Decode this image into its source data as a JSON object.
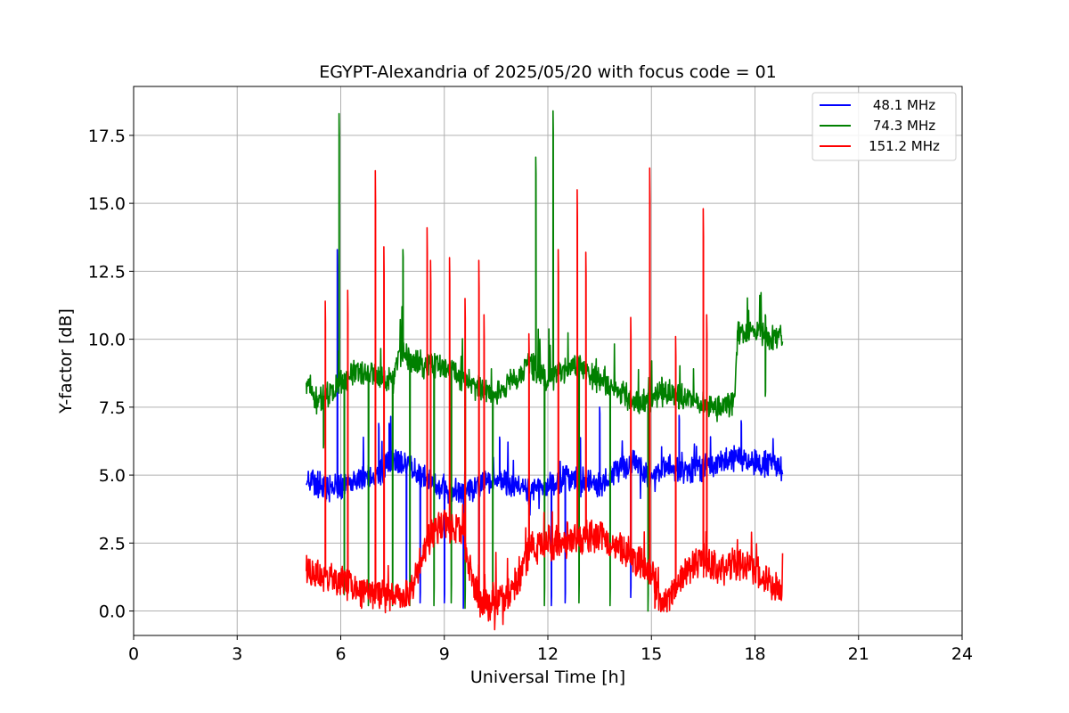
{
  "chart_data": {
    "type": "line",
    "title": "EGYPT-Alexandria of 2025/05/20 with focus code = 01",
    "xlabel": "Universal Time [h]",
    "ylabel": "Y-factor [dB]",
    "xlim": [
      0,
      24
    ],
    "ylim": [
      -0.9,
      19.3
    ],
    "xticks": [
      0,
      3,
      6,
      9,
      12,
      15,
      18,
      21,
      24
    ],
    "yticks": [
      0.0,
      2.5,
      5.0,
      7.5,
      10.0,
      12.5,
      15.0,
      17.5
    ],
    "xtick_labels": [
      "0",
      "3",
      "6",
      "9",
      "12",
      "15",
      "18",
      "21",
      "24"
    ],
    "ytick_labels": [
      "0.0",
      "2.5",
      "5.0",
      "7.5",
      "10.0",
      "12.5",
      "15.0",
      "17.5"
    ],
    "grid": true,
    "legend_position": "top-right",
    "series": [
      {
        "name": "48.1 MHz",
        "color": "#0000ff",
        "baseline": [
          [
            5.0,
            5.0
          ],
          [
            5.3,
            4.7
          ],
          [
            5.6,
            4.4
          ],
          [
            6.0,
            4.6
          ],
          [
            6.5,
            4.8
          ],
          [
            7.0,
            4.9
          ],
          [
            7.5,
            5.6
          ],
          [
            8.0,
            5.3
          ],
          [
            8.5,
            4.8
          ],
          [
            9.0,
            4.5
          ],
          [
            9.5,
            4.4
          ],
          [
            10.0,
            4.6
          ],
          [
            10.5,
            4.9
          ],
          [
            11.0,
            4.5
          ],
          [
            11.5,
            4.4
          ],
          [
            12.0,
            4.6
          ],
          [
            12.5,
            4.9
          ],
          [
            13.0,
            4.8
          ],
          [
            13.5,
            4.6
          ],
          [
            14.0,
            5.2
          ],
          [
            14.5,
            5.5
          ],
          [
            15.0,
            4.8
          ],
          [
            15.5,
            5.4
          ],
          [
            16.0,
            5.1
          ],
          [
            16.5,
            5.3
          ],
          [
            17.0,
            5.5
          ],
          [
            17.5,
            5.7
          ],
          [
            18.0,
            5.5
          ],
          [
            18.5,
            5.4
          ],
          [
            18.8,
            5.3
          ]
        ],
        "spikes": [
          [
            5.9,
            13.3
          ],
          [
            7.1,
            6.9
          ],
          [
            7.4,
            6.9
          ],
          [
            8.6,
            7.0
          ],
          [
            10.6,
            6.4
          ],
          [
            13.5,
            7.5
          ],
          [
            15.8,
            7.2
          ],
          [
            17.6,
            7.0
          ]
        ],
        "dips": [
          [
            7.9,
            0.2
          ],
          [
            8.3,
            0.3
          ],
          [
            9.0,
            0.3
          ],
          [
            9.55,
            0.1
          ],
          [
            10.0,
            0.3
          ],
          [
            12.1,
            0.2
          ],
          [
            12.5,
            0.3
          ],
          [
            14.4,
            0.5
          ]
        ]
      },
      {
        "name": "74.3 MHz",
        "color": "#008000",
        "baseline": [
          [
            5.0,
            8.4
          ],
          [
            5.3,
            7.7
          ],
          [
            5.6,
            8.0
          ],
          [
            6.0,
            8.4
          ],
          [
            6.5,
            8.8
          ],
          [
            7.0,
            8.7
          ],
          [
            7.5,
            8.5
          ],
          [
            7.8,
            9.7
          ],
          [
            8.0,
            9.3
          ],
          [
            8.5,
            9.0
          ],
          [
            9.0,
            9.1
          ],
          [
            9.5,
            8.5
          ],
          [
            10.0,
            8.2
          ],
          [
            10.5,
            7.9
          ],
          [
            11.0,
            8.6
          ],
          [
            11.5,
            9.1
          ],
          [
            12.0,
            8.5
          ],
          [
            12.5,
            8.9
          ],
          [
            13.0,
            9.0
          ],
          [
            13.5,
            8.4
          ],
          [
            14.0,
            8.2
          ],
          [
            14.5,
            7.6
          ],
          [
            15.0,
            7.9
          ],
          [
            15.5,
            8.1
          ],
          [
            16.0,
            7.8
          ],
          [
            16.5,
            7.6
          ],
          [
            17.0,
            7.5
          ],
          [
            17.4,
            7.6
          ],
          [
            17.5,
            10.2
          ],
          [
            18.0,
            10.3
          ],
          [
            18.5,
            10.1
          ],
          [
            18.8,
            10.0
          ]
        ],
        "spikes": [
          [
            5.95,
            18.3
          ],
          [
            7.8,
            13.3
          ],
          [
            11.65,
            16.7
          ],
          [
            12.15,
            18.4
          ],
          [
            15.3,
            8.6
          ],
          [
            18.3,
            10.9
          ]
        ],
        "dips": [
          [
            5.5,
            6.0
          ],
          [
            6.1,
            0.6
          ],
          [
            6.8,
            0.2
          ],
          [
            7.5,
            0.2
          ],
          [
            8.0,
            0.2
          ],
          [
            8.7,
            0.2
          ],
          [
            9.2,
            0.3
          ],
          [
            9.6,
            0.1
          ],
          [
            10.4,
            0.3
          ],
          [
            11.9,
            0.2
          ],
          [
            12.9,
            0.3
          ],
          [
            13.8,
            0.2
          ],
          [
            14.9,
            0.0
          ],
          [
            18.3,
            7.9
          ]
        ]
      },
      {
        "name": "151.2 MHz",
        "color": "#ff0000",
        "baseline": [
          [
            5.0,
            1.5
          ],
          [
            5.5,
            1.3
          ],
          [
            6.0,
            1.0
          ],
          [
            6.5,
            0.8
          ],
          [
            7.0,
            0.6
          ],
          [
            7.5,
            0.5
          ],
          [
            8.0,
            0.6
          ],
          [
            8.5,
            2.5
          ],
          [
            9.0,
            3.3
          ],
          [
            9.5,
            2.8
          ],
          [
            10.0,
            0.3
          ],
          [
            10.5,
            0.3
          ],
          [
            11.0,
            0.8
          ],
          [
            11.5,
            2.3
          ],
          [
            12.0,
            2.5
          ],
          [
            12.5,
            2.6
          ],
          [
            13.0,
            2.6
          ],
          [
            13.5,
            2.8
          ],
          [
            14.0,
            2.4
          ],
          [
            14.5,
            2.0
          ],
          [
            15.0,
            1.5
          ],
          [
            15.3,
            0.3
          ],
          [
            15.7,
            0.8
          ],
          [
            16.0,
            1.5
          ],
          [
            16.5,
            1.9
          ],
          [
            17.0,
            1.5
          ],
          [
            17.5,
            1.7
          ],
          [
            18.0,
            1.5
          ],
          [
            18.5,
            1.0
          ],
          [
            18.8,
            0.9
          ]
        ],
        "spikes": [
          [
            5.55,
            11.4
          ],
          [
            6.2,
            11.8
          ],
          [
            7.0,
            16.2
          ],
          [
            7.25,
            13.4
          ],
          [
            8.5,
            14.1
          ],
          [
            8.6,
            12.9
          ],
          [
            9.15,
            13.0
          ],
          [
            9.6,
            11.5
          ],
          [
            10.0,
            12.9
          ],
          [
            10.15,
            10.9
          ],
          [
            11.45,
            10.2
          ],
          [
            12.3,
            13.3
          ],
          [
            12.85,
            15.5
          ],
          [
            13.1,
            13.2
          ],
          [
            14.4,
            10.8
          ],
          [
            14.95,
            16.3
          ],
          [
            15.7,
            10.1
          ],
          [
            16.5,
            14.8
          ],
          [
            16.6,
            10.9
          ]
        ],
        "dips": [
          [
            6.6,
            0.1
          ],
          [
            7.9,
            0.2
          ],
          [
            10.1,
            0.0
          ],
          [
            15.1,
            0.1
          ]
        ]
      }
    ]
  }
}
